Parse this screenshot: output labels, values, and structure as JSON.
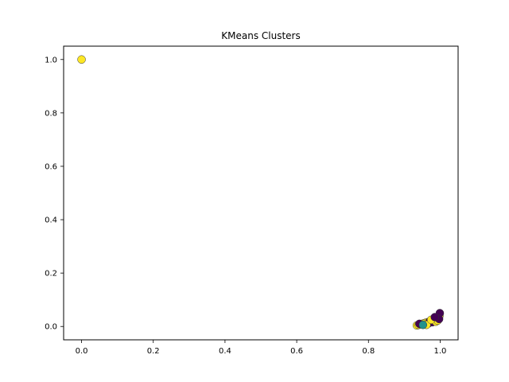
{
  "chart_data": {
    "type": "scatter",
    "title": "KMeans Clusters",
    "xlabel": "",
    "ylabel": "",
    "xlim": [
      -0.05,
      1.05
    ],
    "ylim": [
      -0.05,
      1.05
    ],
    "xticks": [
      0.0,
      0.2,
      0.4,
      0.6,
      0.8,
      1.0
    ],
    "yticks": [
      0.0,
      0.2,
      0.4,
      0.6,
      0.8,
      1.0
    ],
    "xtick_labels": [
      "0.0",
      "0.2",
      "0.4",
      "0.6",
      "0.8",
      "1.0"
    ],
    "ytick_labels": [
      "0.0",
      "0.2",
      "0.4",
      "0.6",
      "0.8",
      "1.0"
    ],
    "grid": false,
    "colors": {
      "cluster_0": "#440154",
      "cluster_1": "#21918c",
      "cluster_2": "#fde725"
    },
    "points": [
      {
        "x": 0.0,
        "y": 1.0,
        "cluster": 2
      },
      {
        "x": 0.935,
        "y": 0.004,
        "cluster": 2
      },
      {
        "x": 0.94,
        "y": 0.006,
        "cluster": 2
      },
      {
        "x": 0.945,
        "y": 0.008,
        "cluster": 2
      },
      {
        "x": 0.95,
        "y": 0.01,
        "cluster": 0
      },
      {
        "x": 0.955,
        "y": 0.012,
        "cluster": 2
      },
      {
        "x": 0.96,
        "y": 0.014,
        "cluster": 2
      },
      {
        "x": 0.965,
        "y": 0.016,
        "cluster": 2
      },
      {
        "x": 0.97,
        "y": 0.018,
        "cluster": 0
      },
      {
        "x": 0.975,
        "y": 0.02,
        "cluster": 2
      },
      {
        "x": 0.98,
        "y": 0.022,
        "cluster": 2
      },
      {
        "x": 0.985,
        "y": 0.026,
        "cluster": 2
      },
      {
        "x": 0.99,
        "y": 0.03,
        "cluster": 0
      },
      {
        "x": 0.995,
        "y": 0.035,
        "cluster": 2
      },
      {
        "x": 0.998,
        "y": 0.04,
        "cluster": 2
      },
      {
        "x": 0.999,
        "y": 0.05,
        "cluster": 0
      },
      {
        "x": 0.942,
        "y": 0.01,
        "cluster": 0
      },
      {
        "x": 0.968,
        "y": 0.012,
        "cluster": 0
      },
      {
        "x": 0.978,
        "y": 0.016,
        "cluster": 0
      },
      {
        "x": 0.988,
        "y": 0.018,
        "cluster": 2
      },
      {
        "x": 0.993,
        "y": 0.022,
        "cluster": 2
      },
      {
        "x": 0.997,
        "y": 0.028,
        "cluster": 0
      },
      {
        "x": 0.962,
        "y": 0.006,
        "cluster": 2
      },
      {
        "x": 0.952,
        "y": 0.006,
        "cluster": 1
      },
      {
        "x": 0.975,
        "y": 0.025,
        "cluster": 2
      },
      {
        "x": 0.985,
        "y": 0.035,
        "cluster": 0
      }
    ]
  }
}
